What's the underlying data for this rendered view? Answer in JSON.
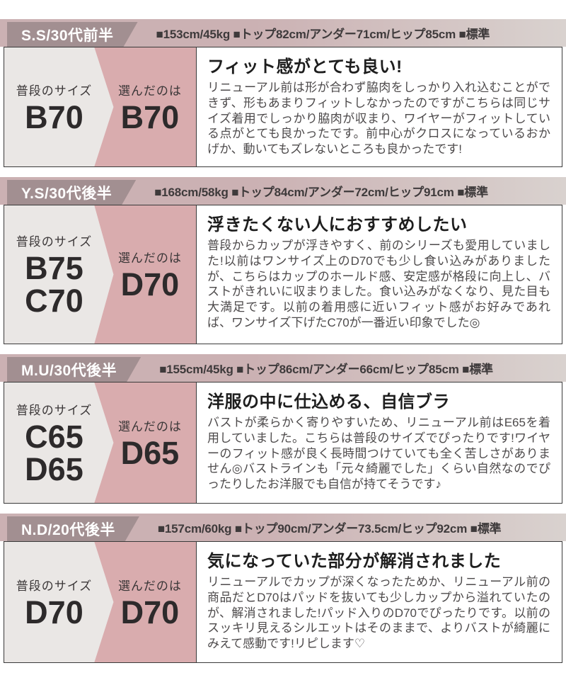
{
  "colors": {
    "bar_left": "#cbb1b3",
    "bar_right": "#d9d2cf",
    "badge_bg": "#a28f91",
    "spec_text": "#3e3a3b",
    "panel_pink": "#d9acae",
    "panel_gray": "#eae7e5",
    "title_text": "#1e1e1e",
    "body_text": "#4d4a4b"
  },
  "labels": {
    "usual_size": "普段のサイズ",
    "chosen": "選んだのは"
  },
  "sections": [
    {
      "reviewer": "S.S/30代前半",
      "specs": "■153cm/45kg ■トップ82cm/アンダー71cm/ヒップ85cm ■標準",
      "usual_sizes": "B70",
      "chosen_size": "B70",
      "title": "フィット感がとても良い!",
      "body": "リニューアル前は形が合わず脇肉をしっかり入れ込むことができず、形もあまりフィットしなかったのですがこちらは同じサイズ着用でしっかり脇肉が収まり、ワイヤーがフィットしている点がとても良かったです。前中心がクロスになっているおかげか、動いてもズレないところも良かったです!"
    },
    {
      "reviewer": "Y.S/30代後半",
      "specs": "■168cm/58kg ■トップ84cm/アンダー72cm/ヒップ91cm ■標準",
      "usual_sizes": "B75\nC70",
      "chosen_size": "D70",
      "title": "浮きたくない人におすすめしたい",
      "body": "普段からカップが浮きやすく、前のシリーズも愛用していました!以前はワンサイズ上のD70でも少し食い込みがありましたが、こちらはカップのホールド感、安定感が格段に向上し、バストがきれいに収まりました。食い込みがなくなり、見た目も大満足です。以前の着用感に近いフィット感がお好みであれば、ワンサイズ下げたC70が一番近い印象でした◎"
    },
    {
      "reviewer": "M.U/30代後半",
      "specs": "■155cm/45kg ■トップ86cm/アンダー66cm/ヒップ85cm ■標準",
      "usual_sizes": "C65\nD65",
      "chosen_size": "D65",
      "title": "洋服の中に仕込める、自信ブラ",
      "body": "バストが柔らかく寄りやすいため、リニューアル前はE65を着用していました。こちらは普段のサイズでぴったりです!ワイヤーのフィット感が良く長時間つけていても全く苦しさがありません◎バストラインも「元々綺麗でした」くらい自然なのでぴったりしたお洋服でも自信が持てそうです♪"
    },
    {
      "reviewer": "N.D/20代後半",
      "specs": "■157cm/60kg ■トップ90cm/アンダー73.5cm/ヒップ92cm ■標準",
      "usual_sizes": "D70",
      "chosen_size": "D70",
      "title": "気になっていた部分が解消されました",
      "body": "リニューアルでカップが深くなったためか、リニューアル前の商品だとD70はパッドを抜いても少しカップから溢れていたのが、解消されました!パッド入りのD70でぴったりです。以前のスッキリ見えるシルエットはそのままで、よりバストが綺麗にみえて感動です!リピします♡"
    }
  ]
}
